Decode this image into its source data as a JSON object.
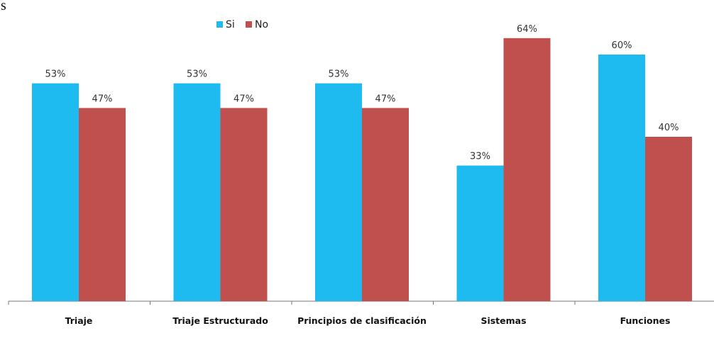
{
  "corner_text": "s",
  "colors": {
    "si": "#1ebbf0",
    "no": "#c0504d",
    "axis": "#777777"
  },
  "chart_data": {
    "type": "bar",
    "categories": [
      "Triaje",
      "Triaje Estructurado",
      "Principios de clasificación",
      "Sistemas",
      "Funciones"
    ],
    "series": [
      {
        "name": "Si",
        "values": [
          53,
          53,
          53,
          33,
          60
        ],
        "labels": [
          "53%",
          "53%",
          "53%",
          "33%",
          "60%"
        ]
      },
      {
        "name": "No",
        "values": [
          47,
          47,
          47,
          64,
          40
        ],
        "labels": [
          "47%",
          "47%",
          "47%",
          "64%",
          "40%"
        ]
      }
    ],
    "ylim": [
      0,
      70
    ],
    "grid": false,
    "legend_position": "top-center"
  }
}
